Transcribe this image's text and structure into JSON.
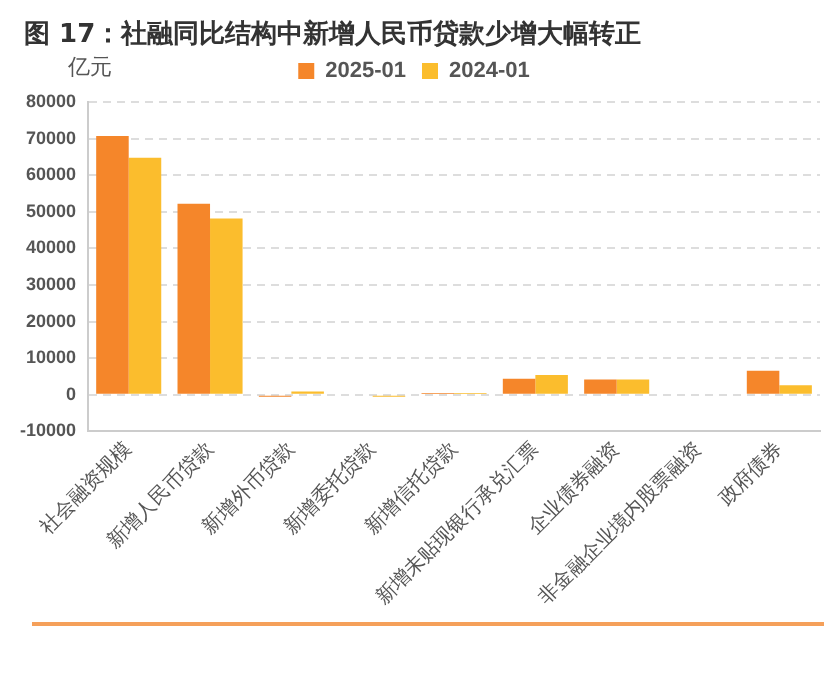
{
  "chart_data": {
    "type": "bar",
    "title": "图 17：社融同比结构中新增人民币贷款少增大幅转正",
    "ylabel": "亿元",
    "categories": [
      "社会融资规模",
      "新增人民币贷款",
      "新增外币贷款",
      "新增委托贷款",
      "新增信托贷款",
      "新增未贴现银行承兑汇票",
      "企业债券融资",
      "非金融企业境内股票融资",
      "政府债券"
    ],
    "series": [
      {
        "name": "2025-01",
        "color": "#f5862a",
        "values": [
          70700,
          52200,
          -500,
          0,
          500,
          4400,
          4200,
          0,
          6600
        ]
      },
      {
        "name": "2024-01",
        "color": "#fbbd2d",
        "values": [
          64800,
          48200,
          900,
          -500,
          500,
          5400,
          4200,
          0,
          2600
        ]
      }
    ],
    "ylim": [
      -10000,
      80000
    ],
    "yticks": [
      -10000,
      0,
      10000,
      20000,
      30000,
      40000,
      50000,
      60000,
      70000,
      80000
    ],
    "grid": "y",
    "legend": "top"
  }
}
